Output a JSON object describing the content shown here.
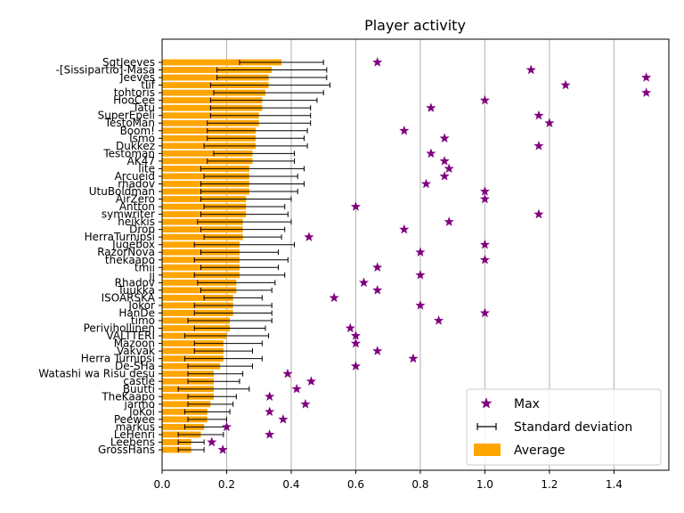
{
  "chart_data": {
    "type": "bar",
    "orientation": "horizontal",
    "title": "Player activity",
    "xlabel": "",
    "ylabel": "",
    "xlim": [
      0,
      1.57
    ],
    "xticks": [
      0.0,
      0.2,
      0.4,
      0.6,
      0.8,
      1.0,
      1.2,
      1.4
    ],
    "grid": "vertical",
    "legend_position": "bottom-right",
    "colors": {
      "average": "#ffa500",
      "max": "#800080",
      "std": "#000000",
      "grid": "#b0b0b0"
    },
    "legend": [
      {
        "key": "max",
        "label": "Max"
      },
      {
        "key": "std",
        "label": "Standard deviation"
      },
      {
        "key": "average",
        "label": "Average"
      }
    ],
    "categories": [
      "SgtJeeves",
      "-[Sissipartio]-Masa",
      "Jeeves",
      "tIif",
      "tohtoris",
      "HooCee",
      "Tatu",
      "SuperEpeli",
      "TestoMan",
      "Boom!",
      "Ismo",
      "Dukkez",
      "Testoman",
      "AK47",
      "lite",
      "Arcueid",
      "rhadov",
      "UtuBoldman",
      "AirZero",
      "Antton",
      "symwriter",
      "heikkis",
      "Drop",
      "HerraTurnipsi",
      "Jugebox",
      "RazorNova",
      "thekaapo",
      "tmii",
      "jj",
      "Rhadov",
      "Tuukka",
      "ISOARSKA",
      "Jokor",
      "HanDe",
      "timo",
      "Perivihollinen",
      "VALTTERI",
      "Mazoon",
      "Vakvak",
      "Herra Turnipsi",
      "De-SHa",
      "Watashi wa Risu desu",
      "castle",
      "Buutti",
      "TheKaapo",
      "jarmo",
      "JoKoi",
      "Peewee",
      "markus",
      "LeHenri",
      "Leebens",
      "GrossHans"
    ],
    "average": [
      0.37,
      0.34,
      0.33,
      0.33,
      0.32,
      0.31,
      0.31,
      0.3,
      0.3,
      0.29,
      0.29,
      0.29,
      0.28,
      0.28,
      0.27,
      0.27,
      0.27,
      0.27,
      0.26,
      0.26,
      0.26,
      0.25,
      0.25,
      0.25,
      0.24,
      0.24,
      0.24,
      0.24,
      0.24,
      0.23,
      0.23,
      0.22,
      0.22,
      0.22,
      0.21,
      0.21,
      0.2,
      0.19,
      0.19,
      0.19,
      0.18,
      0.16,
      0.16,
      0.16,
      0.16,
      0.15,
      0.14,
      0.14,
      0.13,
      0.12,
      0.09,
      0.09
    ],
    "std_low": [
      0.24,
      0.17,
      0.17,
      0.15,
      0.16,
      0.15,
      0.15,
      0.15,
      0.14,
      0.14,
      0.14,
      0.13,
      0.16,
      0.14,
      0.12,
      0.13,
      0.12,
      0.12,
      0.12,
      0.13,
      0.12,
      0.11,
      0.12,
      0.13,
      0.1,
      0.12,
      0.1,
      0.12,
      0.1,
      0.11,
      0.12,
      0.13,
      0.1,
      0.1,
      0.08,
      0.1,
      0.07,
      0.1,
      0.1,
      0.07,
      0.08,
      0.08,
      0.08,
      0.05,
      0.08,
      0.08,
      0.07,
      0.08,
      0.07,
      0.05,
      0.05,
      0.05
    ],
    "std_high": [
      0.5,
      0.51,
      0.51,
      0.52,
      0.5,
      0.48,
      0.46,
      0.46,
      0.46,
      0.45,
      0.44,
      0.45,
      0.41,
      0.41,
      0.44,
      0.42,
      0.44,
      0.42,
      0.4,
      0.38,
      0.39,
      0.4,
      0.38,
      0.37,
      0.41,
      0.36,
      0.39,
      0.36,
      0.38,
      0.35,
      0.34,
      0.31,
      0.34,
      0.34,
      0.34,
      0.32,
      0.33,
      0.31,
      0.28,
      0.31,
      0.28,
      0.25,
      0.24,
      0.27,
      0.23,
      0.22,
      0.21,
      0.2,
      0.2,
      0.19,
      0.13,
      0.13
    ],
    "max": [
      0.667,
      1.143,
      1.5,
      1.25,
      1.5,
      1.0,
      0.833,
      1.167,
      1.2,
      0.75,
      0.875,
      1.167,
      0.833,
      0.875,
      0.889,
      0.875,
      0.818,
      1.0,
      1.0,
      0.6,
      1.167,
      0.889,
      0.75,
      0.455,
      1.0,
      0.8,
      1.0,
      0.667,
      0.8,
      0.625,
      0.667,
      0.533,
      0.8,
      1.0,
      0.857,
      0.583,
      0.6,
      0.6,
      0.667,
      0.778,
      0.6,
      0.389,
      0.462,
      0.417,
      0.333,
      0.444,
      0.333,
      0.375,
      0.2,
      0.333,
      0.154,
      0.188
    ]
  }
}
